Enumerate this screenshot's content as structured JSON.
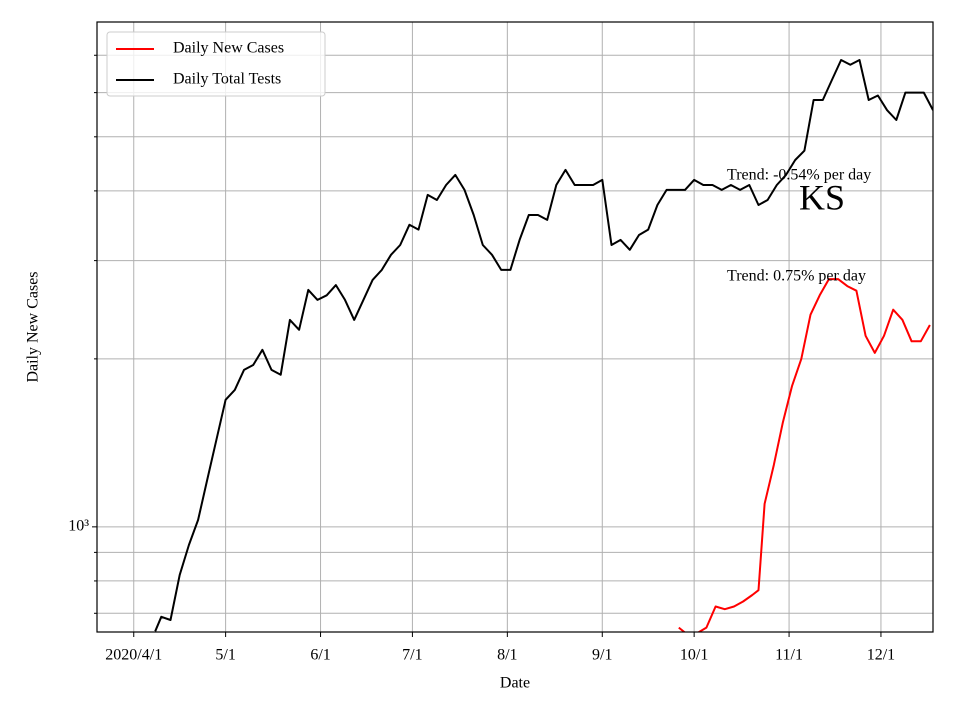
{
  "chart_data": {
    "type": "line",
    "title": "KS",
    "xlabel": "Date",
    "ylabel": "Daily New Cases",
    "log_y": true,
    "grid": true,
    "legend": "upper left",
    "xlim": [
      "2020-03-20",
      "2020-12-18"
    ],
    "xticks": [
      {
        "value": "2020-04-01",
        "label": "2020/4/1"
      },
      {
        "value": "2020-05-01",
        "label": "5/1"
      },
      {
        "value": "2020-06-01",
        "label": "6/1"
      },
      {
        "value": "2020-07-01",
        "label": "7/1"
      },
      {
        "value": "2020-08-01",
        "label": "8/1"
      },
      {
        "value": "2020-09-01",
        "label": "9/1"
      },
      {
        "value": "2020-10-01",
        "label": "10/1"
      },
      {
        "value": "2020-11-01",
        "label": "11/1"
      },
      {
        "value": "2020-12-01",
        "label": "12/1"
      }
    ],
    "ylim": [
      648,
      8030
    ],
    "yticks": [
      {
        "value": 1000,
        "label": "10³"
      }
    ],
    "yminor": [
      700,
      800,
      900,
      2000,
      3000,
      4000,
      5000,
      6000,
      7000
    ],
    "annotations": [
      "Trend: -0.54% per day",
      "Trend: 0.75% per day"
    ],
    "series": [
      {
        "name": "Daily New Cases",
        "color": "#ff0000",
        "x": [
          "2020-09-26",
          "2020-09-29",
          "2020-10-02",
          "2020-10-05",
          "2020-10-08",
          "2020-10-11",
          "2020-10-14",
          "2020-10-17",
          "2020-10-20",
          "2020-10-22",
          "2020-10-24",
          "2020-10-27",
          "2020-10-30",
          "2020-11-02",
          "2020-11-05",
          "2020-11-08",
          "2020-11-11",
          "2020-11-14",
          "2020-11-17",
          "2020-11-20",
          "2020-11-23",
          "2020-11-26",
          "2020-11-29",
          "2020-12-02",
          "2020-12-05",
          "2020-12-08",
          "2020-12-11",
          "2020-12-14",
          "2020-12-17"
        ],
        "values": [
          660,
          640,
          645,
          660,
          720,
          712,
          720,
          735,
          755,
          770,
          1100,
          1290,
          1540,
          1790,
          2000,
          2400,
          2600,
          2780,
          2780,
          2700,
          2650,
          2200,
          2050,
          2200,
          2450,
          2350,
          2150,
          2150,
          2300
        ]
      },
      {
        "name": "Daily Total Tests",
        "color": "#000000",
        "x": [
          "2020-04-08",
          "2020-04-10",
          "2020-04-13",
          "2020-04-16",
          "2020-04-19",
          "2020-04-22",
          "2020-04-25",
          "2020-04-28",
          "2020-05-01",
          "2020-05-04",
          "2020-05-07",
          "2020-05-10",
          "2020-05-13",
          "2020-05-16",
          "2020-05-19",
          "2020-05-22",
          "2020-05-25",
          "2020-05-28",
          "2020-05-31",
          "2020-06-03",
          "2020-06-06",
          "2020-06-09",
          "2020-06-12",
          "2020-06-15",
          "2020-06-18",
          "2020-06-21",
          "2020-06-24",
          "2020-06-27",
          "2020-06-30",
          "2020-07-03",
          "2020-07-06",
          "2020-07-09",
          "2020-07-12",
          "2020-07-15",
          "2020-07-18",
          "2020-07-21",
          "2020-07-24",
          "2020-07-27",
          "2020-07-30",
          "2020-08-02",
          "2020-08-05",
          "2020-08-08",
          "2020-08-11",
          "2020-08-14",
          "2020-08-17",
          "2020-08-20",
          "2020-08-23",
          "2020-08-26",
          "2020-08-29",
          "2020-09-01",
          "2020-09-04",
          "2020-09-07",
          "2020-09-10",
          "2020-09-13",
          "2020-09-16",
          "2020-09-19",
          "2020-09-22",
          "2020-09-25",
          "2020-09-28",
          "2020-10-01",
          "2020-10-04",
          "2020-10-07",
          "2020-10-10",
          "2020-10-13",
          "2020-10-16",
          "2020-10-19",
          "2020-10-22",
          "2020-10-25",
          "2020-10-28",
          "2020-10-31",
          "2020-11-03",
          "2020-11-06",
          "2020-11-09",
          "2020-11-12",
          "2020-11-15",
          "2020-11-18",
          "2020-11-21",
          "2020-11-24",
          "2020-11-27",
          "2020-11-30",
          "2020-12-03",
          "2020-12-06",
          "2020-12-09",
          "2020-12-12",
          "2020-12-15",
          "2020-12-18"
        ],
        "values": [
          650,
          690,
          681,
          820,
          928,
          1029,
          1214,
          1432,
          1689,
          1760,
          1911,
          1950,
          2076,
          1911,
          1873,
          2349,
          2255,
          2658,
          2551,
          2600,
          2712,
          2551,
          2349,
          2551,
          2770,
          2887,
          3073,
          3200,
          3478,
          3410,
          3934,
          3853,
          4098,
          4272,
          4016,
          3621,
          3200,
          3073,
          2887,
          2887,
          3267,
          3621,
          3621,
          3548,
          4098,
          4361,
          4098,
          4098,
          4098,
          4185,
          3200,
          3267,
          3137,
          3335,
          3410,
          3773,
          4016,
          4016,
          4016,
          4185,
          4098,
          4098,
          4016,
          4098,
          4016,
          4098,
          3773,
          3853,
          4098,
          4272,
          4544,
          4722,
          5820,
          5820,
          6320,
          6864,
          6730,
          6864,
          5820,
          5930,
          5580,
          5359,
          6000,
          6000,
          6000,
          5580
        ]
      }
    ]
  }
}
